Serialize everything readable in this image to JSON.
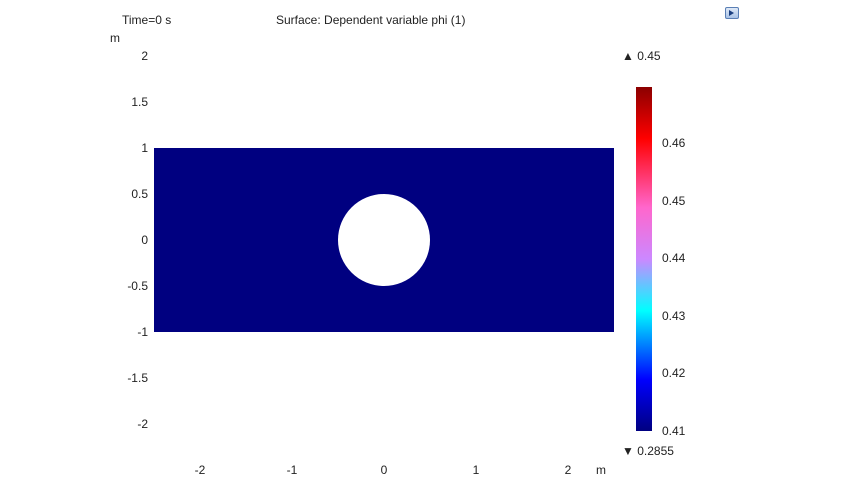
{
  "plot": {
    "time_label": "Time=0 s",
    "title": "Surface: Dependent variable phi (1)",
    "y_unit": "m",
    "x_unit": "m",
    "y_ticks": [
      "2",
      "1.5",
      "1",
      "0.5",
      "0",
      "-0.5",
      "-1",
      "-1.5",
      "-2"
    ],
    "x_ticks": [
      "-2",
      "-1",
      "0",
      "1",
      "2"
    ],
    "x_range": [
      -2.5,
      2.5
    ],
    "y_range": [
      -2.2,
      2.2
    ],
    "domain": {
      "x": [
        -2.5,
        2.5
      ],
      "y": [
        -1,
        1
      ]
    },
    "hole": {
      "cx": 0,
      "cy": 0,
      "r": 0.5
    },
    "fill_color": "#000080",
    "hole_color": "#ffffff"
  },
  "colorbar": {
    "max_label": "▲ 0.45",
    "min_label": "▼ 0.2855",
    "ticks": [
      "0.46",
      "0.45",
      "0.44",
      "0.43",
      "0.42",
      "0.41"
    ],
    "colors": [
      "#8b0000",
      "#ff0000",
      "#ff66cc",
      "#cc88ff",
      "#00ffff",
      "#0000ff",
      "#000080"
    ]
  },
  "toolbar": {
    "icon": "play-icon"
  }
}
